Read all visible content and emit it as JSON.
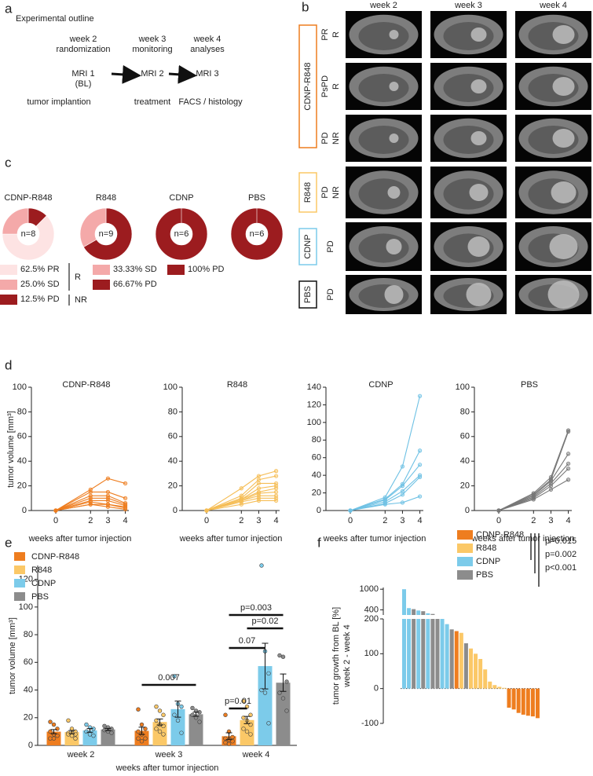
{
  "panel_labels": [
    "a",
    "b",
    "c",
    "d",
    "e",
    "f"
  ],
  "outline": {
    "title": "Experimental outline",
    "stages": [
      {
        "week": "week 2",
        "phase": "randomization",
        "mri": "MRI 1",
        "sub": "(BL)",
        "event": "tumor implantion"
      },
      {
        "week": "week 3",
        "phase": "monitoring",
        "mri": "MRI 2",
        "event": "treatment"
      },
      {
        "week": "week 4",
        "phase": "analyses",
        "mri": "MRI 3",
        "event": "FACS / histology"
      }
    ]
  },
  "mri": {
    "columns": [
      "week 2",
      "week 3",
      "week 4"
    ],
    "groups": [
      {
        "name": "CDNP-R848",
        "color": "#ee7d1f",
        "rows": [
          [
            "PR",
            "R"
          ],
          [
            "PsPD",
            "R"
          ],
          [
            "PD",
            "NR"
          ]
        ]
      },
      {
        "name": "R848",
        "color": "#fbc867",
        "rows": [
          [
            "PD",
            "NR"
          ]
        ]
      },
      {
        "name": "CDNP",
        "color": "#7ccbea",
        "rows": [
          [
            "PD"
          ]
        ]
      },
      {
        "name": "PBS",
        "color": "#111111",
        "rows": [
          [
            "PD"
          ]
        ]
      }
    ]
  },
  "chart_data": [
    {
      "type": "pie",
      "title": "CDNP-R848",
      "title_color": "#ee7d1f",
      "label": "n=8",
      "categories": [
        "PR",
        "SD",
        "PD"
      ],
      "values": [
        62.5,
        25.0,
        12.5
      ],
      "value_labels": [
        "62.5% PR",
        "25.0% SD",
        "12.5% PD"
      ],
      "colors": [
        "#fde3e3",
        "#f4a9a9",
        "#9c1c1f"
      ],
      "brackets": [
        "R",
        "NR"
      ]
    },
    {
      "type": "pie",
      "title": "R848",
      "title_color": "#fbc867",
      "label": "n=9",
      "categories": [
        "SD",
        "PD"
      ],
      "values": [
        33.33,
        66.67
      ],
      "value_labels": [
        "33.33% SD",
        "66.67% PD"
      ],
      "colors": [
        "#f4a9a9",
        "#9c1c1f"
      ]
    },
    {
      "type": "pie",
      "title": "CDNP",
      "title_color": "#7ccbea",
      "label": "n=6",
      "categories": [
        "PD"
      ],
      "values": [
        100
      ],
      "colors": [
        "#9c1c1f"
      ]
    },
    {
      "type": "pie",
      "title": "PBS",
      "title_color": "#111111",
      "label": "n=6",
      "categories": [
        "PD"
      ],
      "values": [
        100
      ],
      "value_labels": [
        "100% PD"
      ],
      "colors": [
        "#9c1c1f"
      ]
    },
    {
      "type": "line",
      "title": "CDNP-R848",
      "title_color": "#ee7d1f",
      "color": "#ee7d1f",
      "ylabel": "tumor volume [mm³]",
      "xlabel": "weeks after tumor injection",
      "x": [
        0,
        2,
        3,
        4
      ],
      "xlim": [
        -1.4,
        4.2
      ],
      "xticks": [
        0,
        2,
        3,
        4
      ],
      "ylim": [
        0,
        100
      ],
      "yticks": [
        0,
        20,
        40,
        60,
        80,
        100
      ],
      "series": [
        {
          "values": [
            0,
            17,
            26,
            22
          ]
        },
        {
          "values": [
            0,
            15,
            15,
            10
          ]
        },
        {
          "values": [
            0,
            12,
            12,
            6
          ]
        },
        {
          "values": [
            0,
            10,
            10,
            5
          ]
        },
        {
          "values": [
            0,
            8,
            8,
            4
          ]
        },
        {
          "values": [
            0,
            7,
            5,
            3
          ]
        },
        {
          "values": [
            0,
            5,
            5,
            2
          ]
        },
        {
          "values": [
            0,
            5,
            3,
            1
          ]
        }
      ]
    },
    {
      "type": "line",
      "title": "R848",
      "title_color": "#fbc867",
      "color": "#f5bd55",
      "xlabel": "weeks after tumor injection",
      "x": [
        0,
        2,
        3,
        4
      ],
      "xlim": [
        -1.4,
        4.2
      ],
      "xticks": [
        0,
        2,
        3,
        4
      ],
      "ylim": [
        0,
        100
      ],
      "yticks": [
        0,
        20,
        40,
        60,
        80,
        100
      ],
      "series": [
        {
          "values": [
            0,
            18,
            28,
            32
          ]
        },
        {
          "values": [
            0,
            12,
            25,
            28
          ]
        },
        {
          "values": [
            0,
            10,
            22,
            22
          ]
        },
        {
          "values": [
            0,
            9,
            18,
            20
          ]
        },
        {
          "values": [
            0,
            9,
            15,
            18
          ]
        },
        {
          "values": [
            0,
            8,
            14,
            15
          ]
        },
        {
          "values": [
            0,
            8,
            12,
            12
          ]
        },
        {
          "values": [
            0,
            7,
            10,
            10
          ]
        },
        {
          "values": [
            0,
            5,
            8,
            8
          ]
        }
      ]
    },
    {
      "type": "line",
      "title": "CDNP",
      "title_color": "#7ccbea",
      "color": "#6ec1e4",
      "xlabel": "weeks after tumor injection",
      "x": [
        0,
        2,
        3,
        4
      ],
      "xlim": [
        -1.4,
        4.2
      ],
      "xticks": [
        0,
        2,
        3,
        4
      ],
      "ylim": [
        0,
        140
      ],
      "yticks": [
        0,
        20,
        40,
        60,
        80,
        100,
        120,
        140
      ],
      "series": [
        {
          "values": [
            0,
            15,
            50,
            130
          ]
        },
        {
          "values": [
            0,
            13,
            30,
            68
          ]
        },
        {
          "values": [
            0,
            12,
            28,
            52
          ]
        },
        {
          "values": [
            0,
            10,
            22,
            40
          ]
        },
        {
          "values": [
            0,
            8,
            18,
            38
          ]
        },
        {
          "values": [
            0,
            7,
            9,
            16
          ]
        }
      ]
    },
    {
      "type": "line",
      "title": "PBS",
      "title_color": "#111111",
      "color": "#777777",
      "xlabel": "weeks after tumor injection",
      "x": [
        0,
        2,
        3,
        4
      ],
      "xlim": [
        -1.4,
        4.2
      ],
      "xticks": [
        0,
        2,
        3,
        4
      ],
      "ylim": [
        0,
        100
      ],
      "yticks": [
        0,
        20,
        40,
        60,
        80,
        100
      ],
      "series": [
        {
          "values": [
            0,
            14,
            27,
            65
          ]
        },
        {
          "values": [
            0,
            13,
            25,
            64
          ]
        },
        {
          "values": [
            0,
            12,
            24,
            46
          ]
        },
        {
          "values": [
            0,
            11,
            22,
            38
          ]
        },
        {
          "values": [
            0,
            10,
            20,
            34
          ]
        },
        {
          "values": [
            0,
            9,
            17,
            25
          ]
        }
      ]
    },
    {
      "type": "bar",
      "ylabel": "tumor volume [mm³]",
      "xlabel": "weeks after tumor injection",
      "categories": [
        "week 2",
        "week 3",
        "week 4"
      ],
      "ylim": [
        0,
        130
      ],
      "yticks": [
        0,
        20,
        40,
        60,
        80,
        100,
        120
      ],
      "series": [
        {
          "name": "CDNP-R848",
          "color": "#ee7d1f",
          "values": [
            9.9,
            10.5,
            6.6
          ],
          "errors": [
            1.5,
            2.6,
            2.5
          ],
          "points": [
            [
              17,
              15,
              12,
              10,
              8,
              7,
              5,
              5
            ],
            [
              26,
              15,
              12,
              10,
              8,
              5,
              5,
              3
            ],
            [
              22,
              10,
              6,
              5,
              4,
              3,
              2,
              1
            ]
          ]
        },
        {
          "name": "R848",
          "color": "#fbc867",
          "values": [
            9.6,
            16.9,
            18.3
          ],
          "errors": [
            1.2,
            2.2,
            2.6
          ],
          "points": [
            [
              18,
              12,
              10,
              9,
              9,
              8,
              8,
              7,
              5
            ],
            [
              28,
              25,
              22,
              18,
              15,
              14,
              12,
              10,
              8
            ],
            [
              32,
              28,
              22,
              20,
              18,
              15,
              12,
              10,
              8
            ]
          ]
        },
        {
          "name": "CDNP",
          "color": "#7ccbea",
          "values": [
            10.8,
            26.2,
            57.3
          ],
          "errors": [
            1.3,
            5.8,
            16.5
          ],
          "points": [
            [
              15,
              13,
              12,
              10,
              8,
              7
            ],
            [
              50,
              30,
              28,
              22,
              18,
              9
            ],
            [
              130,
              68,
              52,
              40,
              38,
              16
            ]
          ]
        },
        {
          "name": "PBS",
          "color": "#8c8c8c",
          "values": [
            11.5,
            22.5,
            45.3
          ],
          "errors": [
            0.8,
            1.5,
            6.3
          ],
          "points": [
            [
              14,
              13,
              12,
              11,
              10,
              9
            ],
            [
              27,
              25,
              24,
              22,
              20,
              17
            ],
            [
              65,
              64,
              46,
              38,
              34,
              25
            ]
          ]
        }
      ],
      "comparisons": [
        {
          "label": "0.007",
          "category": "week 3",
          "between": [
            "CDNP-R848",
            "PBS"
          ]
        },
        {
          "label": "p=0.01",
          "category": "week 4",
          "between": [
            "CDNP-R848",
            "R848"
          ]
        },
        {
          "label": "0.07",
          "category": "week 4",
          "between": [
            "CDNP-R848",
            "CDNP"
          ]
        },
        {
          "label": "p=0.02",
          "category": "week 4",
          "between": [
            "R848",
            "PBS"
          ]
        },
        {
          "label": "p=0.003",
          "category": "week 4",
          "between": [
            "CDNP-R848",
            "PBS"
          ]
        }
      ]
    },
    {
      "type": "waterfall",
      "ylabel": "tumor growth from BL [%]",
      "ylabel2": "week 2 - week 4",
      "ylim": [
        -100,
        200
      ],
      "yticks": [
        -100,
        0,
        100,
        200
      ],
      "ylim_upper": [
        250,
        1050
      ],
      "yticks_upper": [
        400,
        1000
      ],
      "legend": [
        {
          "name": "CDNP-R848",
          "color": "#ee7d1f"
        },
        {
          "name": "R848",
          "color": "#fbc867"
        },
        {
          "name": "CDNP",
          "color": "#7ccbea"
        },
        {
          "name": "PBS",
          "color": "#8c8c8c"
        }
      ],
      "values": [
        1000,
        450,
        420,
        380,
        360,
        300,
        280,
        230,
        210,
        185,
        170,
        165,
        160,
        130,
        115,
        100,
        85,
        55,
        20,
        10,
        5,
        2,
        -55,
        -60,
        -70,
        -75,
        -78,
        -80,
        -85
      ],
      "groups": [
        "CDNP",
        "CDNP",
        "PBS",
        "CDNP",
        "PBS",
        "CDNP",
        "PBS",
        "PBS",
        "CDNP",
        "CDNP",
        "PBS",
        "CDNP-R848",
        "R848",
        "PBS",
        "R848",
        "R848",
        "R848",
        "R848",
        "R848",
        "R848",
        "R848",
        "R848",
        "CDNP-R848",
        "CDNP-R848",
        "CDNP-R848",
        "CDNP-R848",
        "CDNP-R848",
        "CDNP-R848",
        "CDNP-R848"
      ],
      "annotations": [
        "p=0.015",
        "p=0.002",
        "p<0.001"
      ]
    }
  ]
}
